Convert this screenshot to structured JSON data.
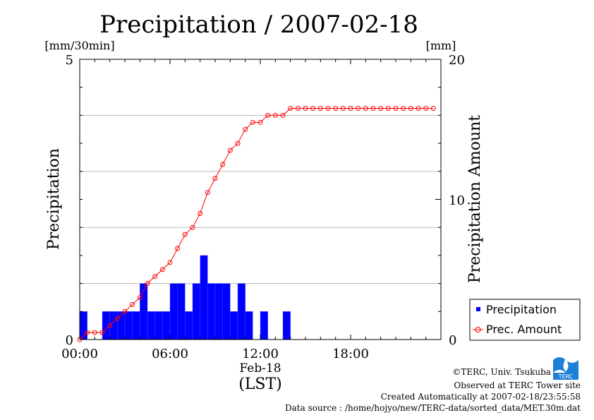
{
  "chart_data": {
    "type": "bar",
    "title": "Precipitation / 2007-02-18",
    "xlabel_date": "Feb-18",
    "xlabel_tz": "(LST)",
    "x_ticks": [
      "00:00",
      "06:00",
      "12:00",
      "18:00"
    ],
    "x_tick_hours": [
      0,
      6,
      12,
      18
    ],
    "xlim": [
      0,
      24
    ],
    "left_axis": {
      "label": "Precipitation",
      "unit": "[mm/30min]",
      "ylim": [
        0,
        5
      ],
      "ticks": [
        "0",
        "5"
      ]
    },
    "right_axis": {
      "label": "Precipitation Amount",
      "unit": "[mm]",
      "ylim": [
        0,
        20
      ],
      "ticks": [
        "0",
        "10",
        "20"
      ]
    },
    "grid": true,
    "legend_position": "bottom-right, outside plot",
    "series": [
      {
        "name": "Precipitation",
        "type": "bar",
        "color": "#0000ff",
        "x_hours": [
          0.0,
          0.5,
          1.0,
          1.5,
          2.0,
          2.5,
          3.0,
          3.5,
          4.0,
          4.5,
          5.0,
          5.5,
          6.0,
          6.5,
          7.0,
          7.5,
          8.0,
          8.5,
          9.0,
          9.5,
          10.0,
          10.5,
          11.0,
          11.5,
          12.0,
          12.5,
          13.0,
          13.5,
          14.0,
          14.5,
          15.0,
          15.5,
          16.0,
          16.5,
          17.0,
          17.5,
          18.0,
          18.5,
          19.0,
          19.5,
          20.0,
          20.5,
          21.0,
          21.5,
          22.0,
          22.5,
          23.0,
          23.5
        ],
        "values": [
          0.5,
          0,
          0,
          0.5,
          0.5,
          0.5,
          0.5,
          0.5,
          1.0,
          0.5,
          0.5,
          0.5,
          1.0,
          1.0,
          0.5,
          1.0,
          1.5,
          1.0,
          1.0,
          1.0,
          0.5,
          1.0,
          0.5,
          0,
          0.5,
          0,
          0,
          0.5,
          0,
          0,
          0,
          0,
          0,
          0,
          0,
          0,
          0,
          0,
          0,
          0,
          0,
          0,
          0,
          0,
          0,
          0,
          0,
          0
        ]
      },
      {
        "name": "Prec. Amount",
        "type": "line",
        "color": "#ff0000",
        "x_hours": [
          0.0,
          0.5,
          1.0,
          1.5,
          2.0,
          2.5,
          3.0,
          3.5,
          4.0,
          4.5,
          5.0,
          5.5,
          6.0,
          6.5,
          7.0,
          7.5,
          8.0,
          8.5,
          9.0,
          9.5,
          10.0,
          10.5,
          11.0,
          11.5,
          12.0,
          12.5,
          13.0,
          13.5,
          14.0,
          14.5,
          15.0,
          15.5,
          16.0,
          16.5,
          17.0,
          17.5,
          18.0,
          18.5,
          19.0,
          19.5,
          20.0,
          20.5,
          21.0,
          21.5,
          22.0,
          22.5,
          23.0,
          23.5
        ],
        "values": [
          0.0,
          0.5,
          0.5,
          0.5,
          1.0,
          1.5,
          2.0,
          2.5,
          3.0,
          4.0,
          4.5,
          5.0,
          5.5,
          6.5,
          7.5,
          8.0,
          9.0,
          10.5,
          11.5,
          12.5,
          13.5,
          14.0,
          15.0,
          15.5,
          15.5,
          16.0,
          16.0,
          16.0,
          16.5,
          16.5,
          16.5,
          16.5,
          16.5,
          16.5,
          16.5,
          16.5,
          16.5,
          16.5,
          16.5,
          16.5,
          16.5,
          16.5,
          16.5,
          16.5,
          16.5,
          16.5,
          16.5,
          16.5
        ]
      }
    ]
  },
  "footer": {
    "copyright": "©TERC, Univ. Tsukuba",
    "observed": "Observed at TERC Tower site",
    "created": "Created Automatically at 2007-02-18/23:55:58",
    "source": "Data source : /home/hojyo/new/TERC-data/sorted_data/MET.30m.dat",
    "logo_text": "TERC"
  }
}
